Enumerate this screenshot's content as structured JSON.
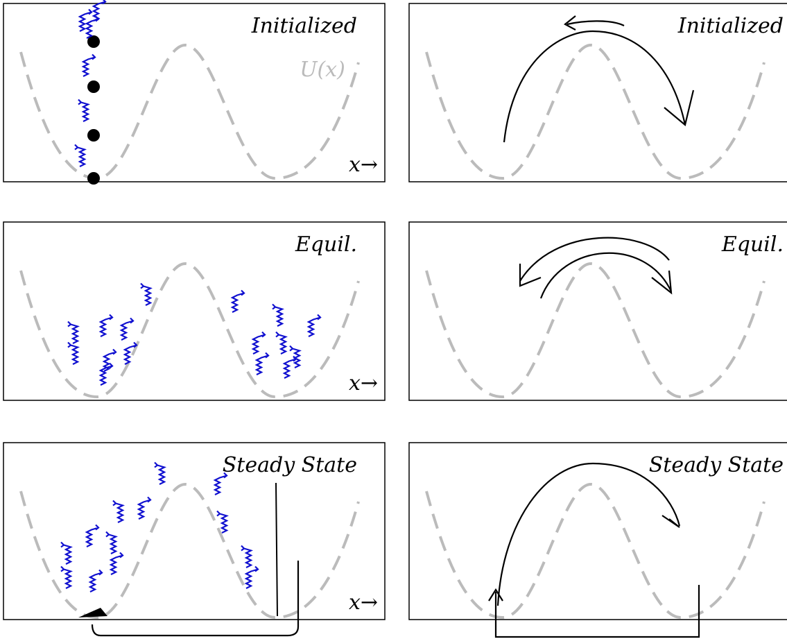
{
  "panels": [
    {
      "label": "Initialized",
      "potential_label": "U(x)",
      "axis_label": "x→"
    },
    {
      "label": "Initialized"
    },
    {
      "label": "Equil.",
      "axis_label": "x→"
    },
    {
      "label": "Equil."
    },
    {
      "label": "Steady State",
      "axis_label": "x→"
    },
    {
      "label": "Steady State"
    }
  ]
}
